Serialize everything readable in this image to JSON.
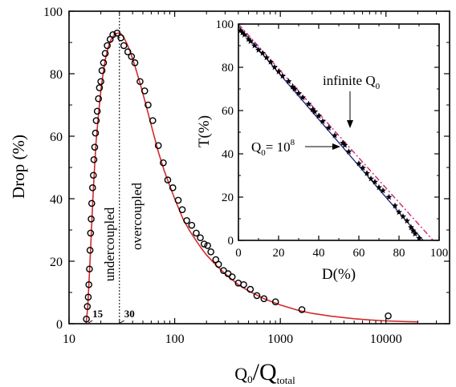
{
  "chart_data": [
    {
      "type": "scatter",
      "xscale": "log",
      "xlim": [
        10,
        40000
      ],
      "ylim": [
        0,
        100
      ],
      "xlabel": "Q",
      "xlabel_sub1": "0",
      "xlabel_slash": "/Q",
      "xlabel_sub2": "total",
      "ylabel": "Drop (%)",
      "x_tick_labels": [
        {
          "x": 10,
          "label": "10"
        },
        {
          "x": 100,
          "label": "100"
        },
        {
          "x": 1000,
          "label": "1000"
        },
        {
          "x": 10000,
          "label": "10000"
        }
      ],
      "y_tick_labels": [
        {
          "y": 0,
          "label": "0"
        },
        {
          "y": 20,
          "label": "20"
        },
        {
          "y": 40,
          "label": "40"
        },
        {
          "y": 60,
          "label": "60"
        },
        {
          "y": 80,
          "label": "80"
        },
        {
          "y": 100,
          "label": "100"
        }
      ],
      "divider_x": 30,
      "region_labels": {
        "left": "undercoupled",
        "right": "overcoupled"
      },
      "markers": [
        {
          "x": 15,
          "label": "15"
        },
        {
          "x": 30,
          "label": "30"
        }
      ],
      "series": [
        {
          "kind": "points",
          "marker": "open-circle",
          "x": [
            14.6,
            14.9,
            15.2,
            15.4,
            15.6,
            15.8,
            16.0,
            16.2,
            16.4,
            16.7,
            17.0,
            17.2,
            17.5,
            17.8,
            18.1,
            18.5,
            19.0,
            19.4,
            20.0,
            20.5,
            21.2,
            22.0,
            23.0,
            24.5,
            26.0,
            28.5,
            31,
            33,
            36,
            39,
            42,
            47,
            52,
            56,
            62,
            70,
            78,
            86,
            96,
            108,
            118,
            130,
            145,
            160,
            175,
            190,
            205,
            220,
            245,
            260,
            290,
            320,
            350,
            400,
            450,
            520,
            600,
            700,
            900,
            1600,
            10500
          ],
          "y": [
            1.5,
            5.5,
            8.5,
            12.5,
            17.5,
            23.5,
            29,
            33.5,
            38.5,
            43.5,
            47.5,
            52.5,
            56.5,
            61,
            65,
            68,
            72,
            75.5,
            77.5,
            81,
            83.5,
            86.5,
            89,
            91,
            92.5,
            93,
            91.5,
            89,
            87,
            85.5,
            83.5,
            77.5,
            74.5,
            70,
            65,
            57,
            51.5,
            46,
            43.5,
            39.5,
            36.5,
            33,
            31.5,
            29,
            27.5,
            25.5,
            25,
            23,
            20.5,
            19,
            17,
            16,
            15,
            13,
            12.5,
            11,
            9,
            8,
            7,
            4.5,
            2.5
          ]
        },
        {
          "kind": "line",
          "color": "#d42a2a",
          "x": [
            14.5,
            15,
            15.5,
            16,
            16.5,
            17,
            17.5,
            18,
            19,
            20,
            21,
            22,
            23.5,
            25,
            27,
            29,
            30,
            31,
            33,
            35,
            38,
            42,
            47,
            53,
            60,
            70,
            80,
            90,
            100,
            120,
            140,
            160,
            180,
            200,
            250,
            300,
            400,
            500,
            700,
            1000,
            1500,
            2000,
            3000,
            5000,
            7000,
            10000,
            15000,
            20000
          ],
          "y": [
            0,
            5,
            14,
            24,
            34,
            43,
            51,
            58,
            67,
            74.5,
            80,
            84.5,
            88.5,
            91,
            92.6,
            93,
            93,
            92.8,
            91.6,
            89.9,
            87,
            82.5,
            77,
            70.5,
            63.5,
            55,
            48.8,
            44,
            40,
            33.5,
            29.5,
            26.5,
            24,
            22,
            18.5,
            16,
            12.5,
            10.5,
            8,
            6,
            4.2,
            3.3,
            2.4,
            1.6,
            1.2,
            0.9,
            0.7,
            0.6
          ]
        }
      ]
    },
    {
      "type": "scatter",
      "inset": true,
      "xlim": [
        0,
        100
      ],
      "ylim": [
        0,
        100
      ],
      "xlabel": "D(%)",
      "ylabel": "T(%)",
      "x_tick_labels": [
        {
          "x": 0,
          "label": "0"
        },
        {
          "x": 20,
          "label": "20"
        },
        {
          "x": 40,
          "label": "40"
        },
        {
          "x": 60,
          "label": "60"
        },
        {
          "x": 80,
          "label": "80"
        },
        {
          "x": 100,
          "label": "100"
        }
      ],
      "y_tick_labels": [
        {
          "y": 0,
          "label": "0"
        },
        {
          "y": 20,
          "label": "20"
        },
        {
          "y": 40,
          "label": "40"
        },
        {
          "y": 60,
          "label": "60"
        },
        {
          "y": 80,
          "label": "80"
        },
        {
          "y": 100,
          "label": "100"
        }
      ],
      "annotations": [
        {
          "text": "infinite Q",
          "sub": "0",
          "sup": "",
          "arrow_to": [
            58,
            48
          ]
        },
        {
          "text": "Q",
          "sub": "0",
          "eq": "= 10",
          "sup": "8",
          "arrow_to": [
            52,
            44
          ]
        }
      ],
      "series": [
        {
          "kind": "points",
          "marker": "star",
          "x": [
            1,
            2,
            3,
            5,
            6,
            8,
            10,
            12,
            14,
            16,
            18,
            20,
            22,
            25,
            27,
            28,
            30,
            32,
            35,
            37,
            38,
            40,
            42,
            45,
            48,
            52,
            53,
            55,
            60,
            62,
            64,
            66,
            68,
            70,
            72,
            75,
            78,
            80,
            82,
            84,
            86,
            87,
            88,
            90
          ],
          "y": [
            97,
            96,
            95,
            93,
            92,
            90,
            88,
            86.5,
            84.5,
            82.5,
            80,
            78,
            76,
            73.5,
            71,
            70,
            68,
            66,
            63,
            60.5,
            59.5,
            57.5,
            55,
            52,
            48.5,
            45,
            44,
            41,
            35.5,
            33.5,
            31,
            28.5,
            27,
            24.5,
            23,
            20,
            16,
            13,
            11,
            9,
            6,
            4.5,
            3,
            1
          ]
        },
        {
          "kind": "line",
          "color": "#2a2a8a",
          "x": [
            0,
            92
          ],
          "y": [
            99,
            0
          ]
        },
        {
          "kind": "line",
          "style": "dash-dot",
          "color": "#d4207a",
          "x": [
            0,
            97
          ],
          "y": [
            100,
            0
          ]
        }
      ]
    }
  ]
}
